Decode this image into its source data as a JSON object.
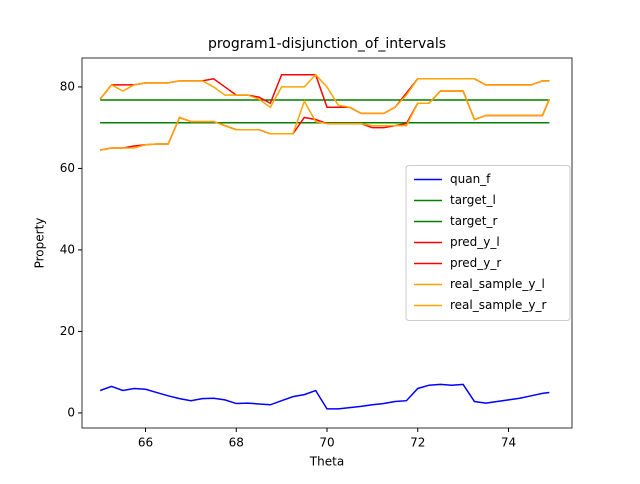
{
  "chart_data": {
    "type": "line",
    "title": "program1-disjunction_of_intervals",
    "xlabel": "Theta",
    "ylabel": "Property",
    "x": [
      65.0,
      65.25,
      65.5,
      65.75,
      66.0,
      66.25,
      66.5,
      66.75,
      67.0,
      67.25,
      67.5,
      67.75,
      68.0,
      68.25,
      68.5,
      68.75,
      69.0,
      69.25,
      69.5,
      69.75,
      70.0,
      70.25,
      70.5,
      70.75,
      71.0,
      71.25,
      71.5,
      71.75,
      72.0,
      72.25,
      72.5,
      72.75,
      73.0,
      73.25,
      73.5,
      73.75,
      74.0,
      74.25,
      74.5,
      74.75,
      74.9
    ],
    "series": [
      {
        "name": "quan_f",
        "color": "#0000ff",
        "values": [
          5.5,
          6.5,
          5.5,
          6,
          5.8,
          5,
          4.2,
          3.5,
          3,
          3.5,
          3.6,
          3.2,
          2.3,
          2.4,
          2.2,
          2,
          3,
          4,
          4.5,
          5.5,
          1,
          1,
          1.3,
          1.6,
          2,
          2.3,
          2.8,
          3,
          6,
          6.8,
          7,
          6.8,
          7,
          2.8,
          2.4,
          2.8,
          3.2,
          3.6,
          4.2,
          4.8,
          5
        ]
      },
      {
        "name": "target_l",
        "color": "#008000",
        "values": [
          71.2,
          71.2,
          71.2,
          71.2,
          71.2,
          71.2,
          71.2,
          71.2,
          71.2,
          71.2,
          71.2,
          71.2,
          71.2,
          71.2,
          71.2,
          71.2,
          71.2,
          71.2,
          71.2,
          71.2,
          71.2,
          71.2,
          71.2,
          71.2,
          71.2,
          71.2,
          71.2,
          71.2,
          71.2,
          71.2,
          71.2,
          71.2,
          71.2,
          71.2,
          71.2,
          71.2,
          71.2,
          71.2,
          71.2,
          71.2,
          71.2
        ]
      },
      {
        "name": "target_r",
        "color": "#008000",
        "values": [
          76.8,
          76.8,
          76.8,
          76.8,
          76.8,
          76.8,
          76.8,
          76.8,
          76.8,
          76.8,
          76.8,
          76.8,
          76.8,
          76.8,
          76.8,
          76.8,
          76.8,
          76.8,
          76.8,
          76.8,
          76.8,
          76.8,
          76.8,
          76.8,
          76.8,
          76.8,
          76.8,
          76.8,
          76.8,
          76.8,
          76.8,
          76.8,
          76.8,
          76.8,
          76.8,
          76.8,
          76.8,
          76.8,
          76.8,
          76.8,
          76.8
        ]
      },
      {
        "name": "pred_y_l",
        "color": "#ff0000",
        "values": [
          64.5,
          65,
          65,
          65.5,
          65.8,
          66,
          66,
          72.5,
          71.5,
          71.5,
          71.5,
          70.5,
          69.5,
          69.5,
          69.5,
          68.5,
          68.5,
          68.5,
          72.5,
          72,
          71,
          71,
          71,
          71,
          70,
          70,
          70.5,
          71,
          76,
          76,
          79,
          79,
          79,
          72,
          73,
          73,
          73,
          73,
          73,
          73,
          77
        ]
      },
      {
        "name": "pred_y_r",
        "color": "#ff0000",
        "values": [
          77,
          80.5,
          80.5,
          80.5,
          81,
          81,
          81,
          81.5,
          81.5,
          81.5,
          82,
          80,
          78,
          78,
          77.5,
          76,
          83,
          83,
          83,
          83,
          75,
          75,
          75,
          73.5,
          73.5,
          73.5,
          75,
          78.5,
          82,
          82,
          82,
          82,
          82,
          82,
          80.5,
          80.5,
          80.5,
          80.5,
          80.5,
          81.5,
          81.5
        ]
      },
      {
        "name": "real_sample_y_l",
        "color": "#ffa500",
        "values": [
          64.5,
          65,
          65,
          65,
          65.8,
          66,
          66,
          72.5,
          71.5,
          71.5,
          71.5,
          70.5,
          69.5,
          69.5,
          69.5,
          68.5,
          68.5,
          68.5,
          76.5,
          71.5,
          71,
          71,
          71,
          71,
          70.5,
          70.5,
          70.5,
          70.5,
          76,
          76,
          79,
          79,
          79,
          72,
          73,
          73,
          73,
          73,
          73,
          73,
          77
        ]
      },
      {
        "name": "real_sample_y_r",
        "color": "#ffa500",
        "values": [
          77,
          80.5,
          79,
          80.5,
          81,
          81,
          81,
          81.5,
          81.5,
          81.5,
          80,
          78,
          78,
          78,
          77,
          75,
          80,
          80,
          80,
          83,
          80,
          75.5,
          75,
          73.5,
          73.5,
          73.5,
          75,
          78,
          82,
          82,
          82,
          82,
          82,
          82,
          80.5,
          80.5,
          80.5,
          80.5,
          80.5,
          81.5,
          81.5
        ]
      }
    ],
    "xlim": [
      64.6,
      75.4
    ],
    "ylim": [
      -3.7,
      87.1
    ],
    "xticks": [
      66,
      68,
      70,
      72,
      74
    ],
    "yticks": [
      0,
      20,
      40,
      60,
      80
    ],
    "grid": false,
    "legend": "center right"
  }
}
